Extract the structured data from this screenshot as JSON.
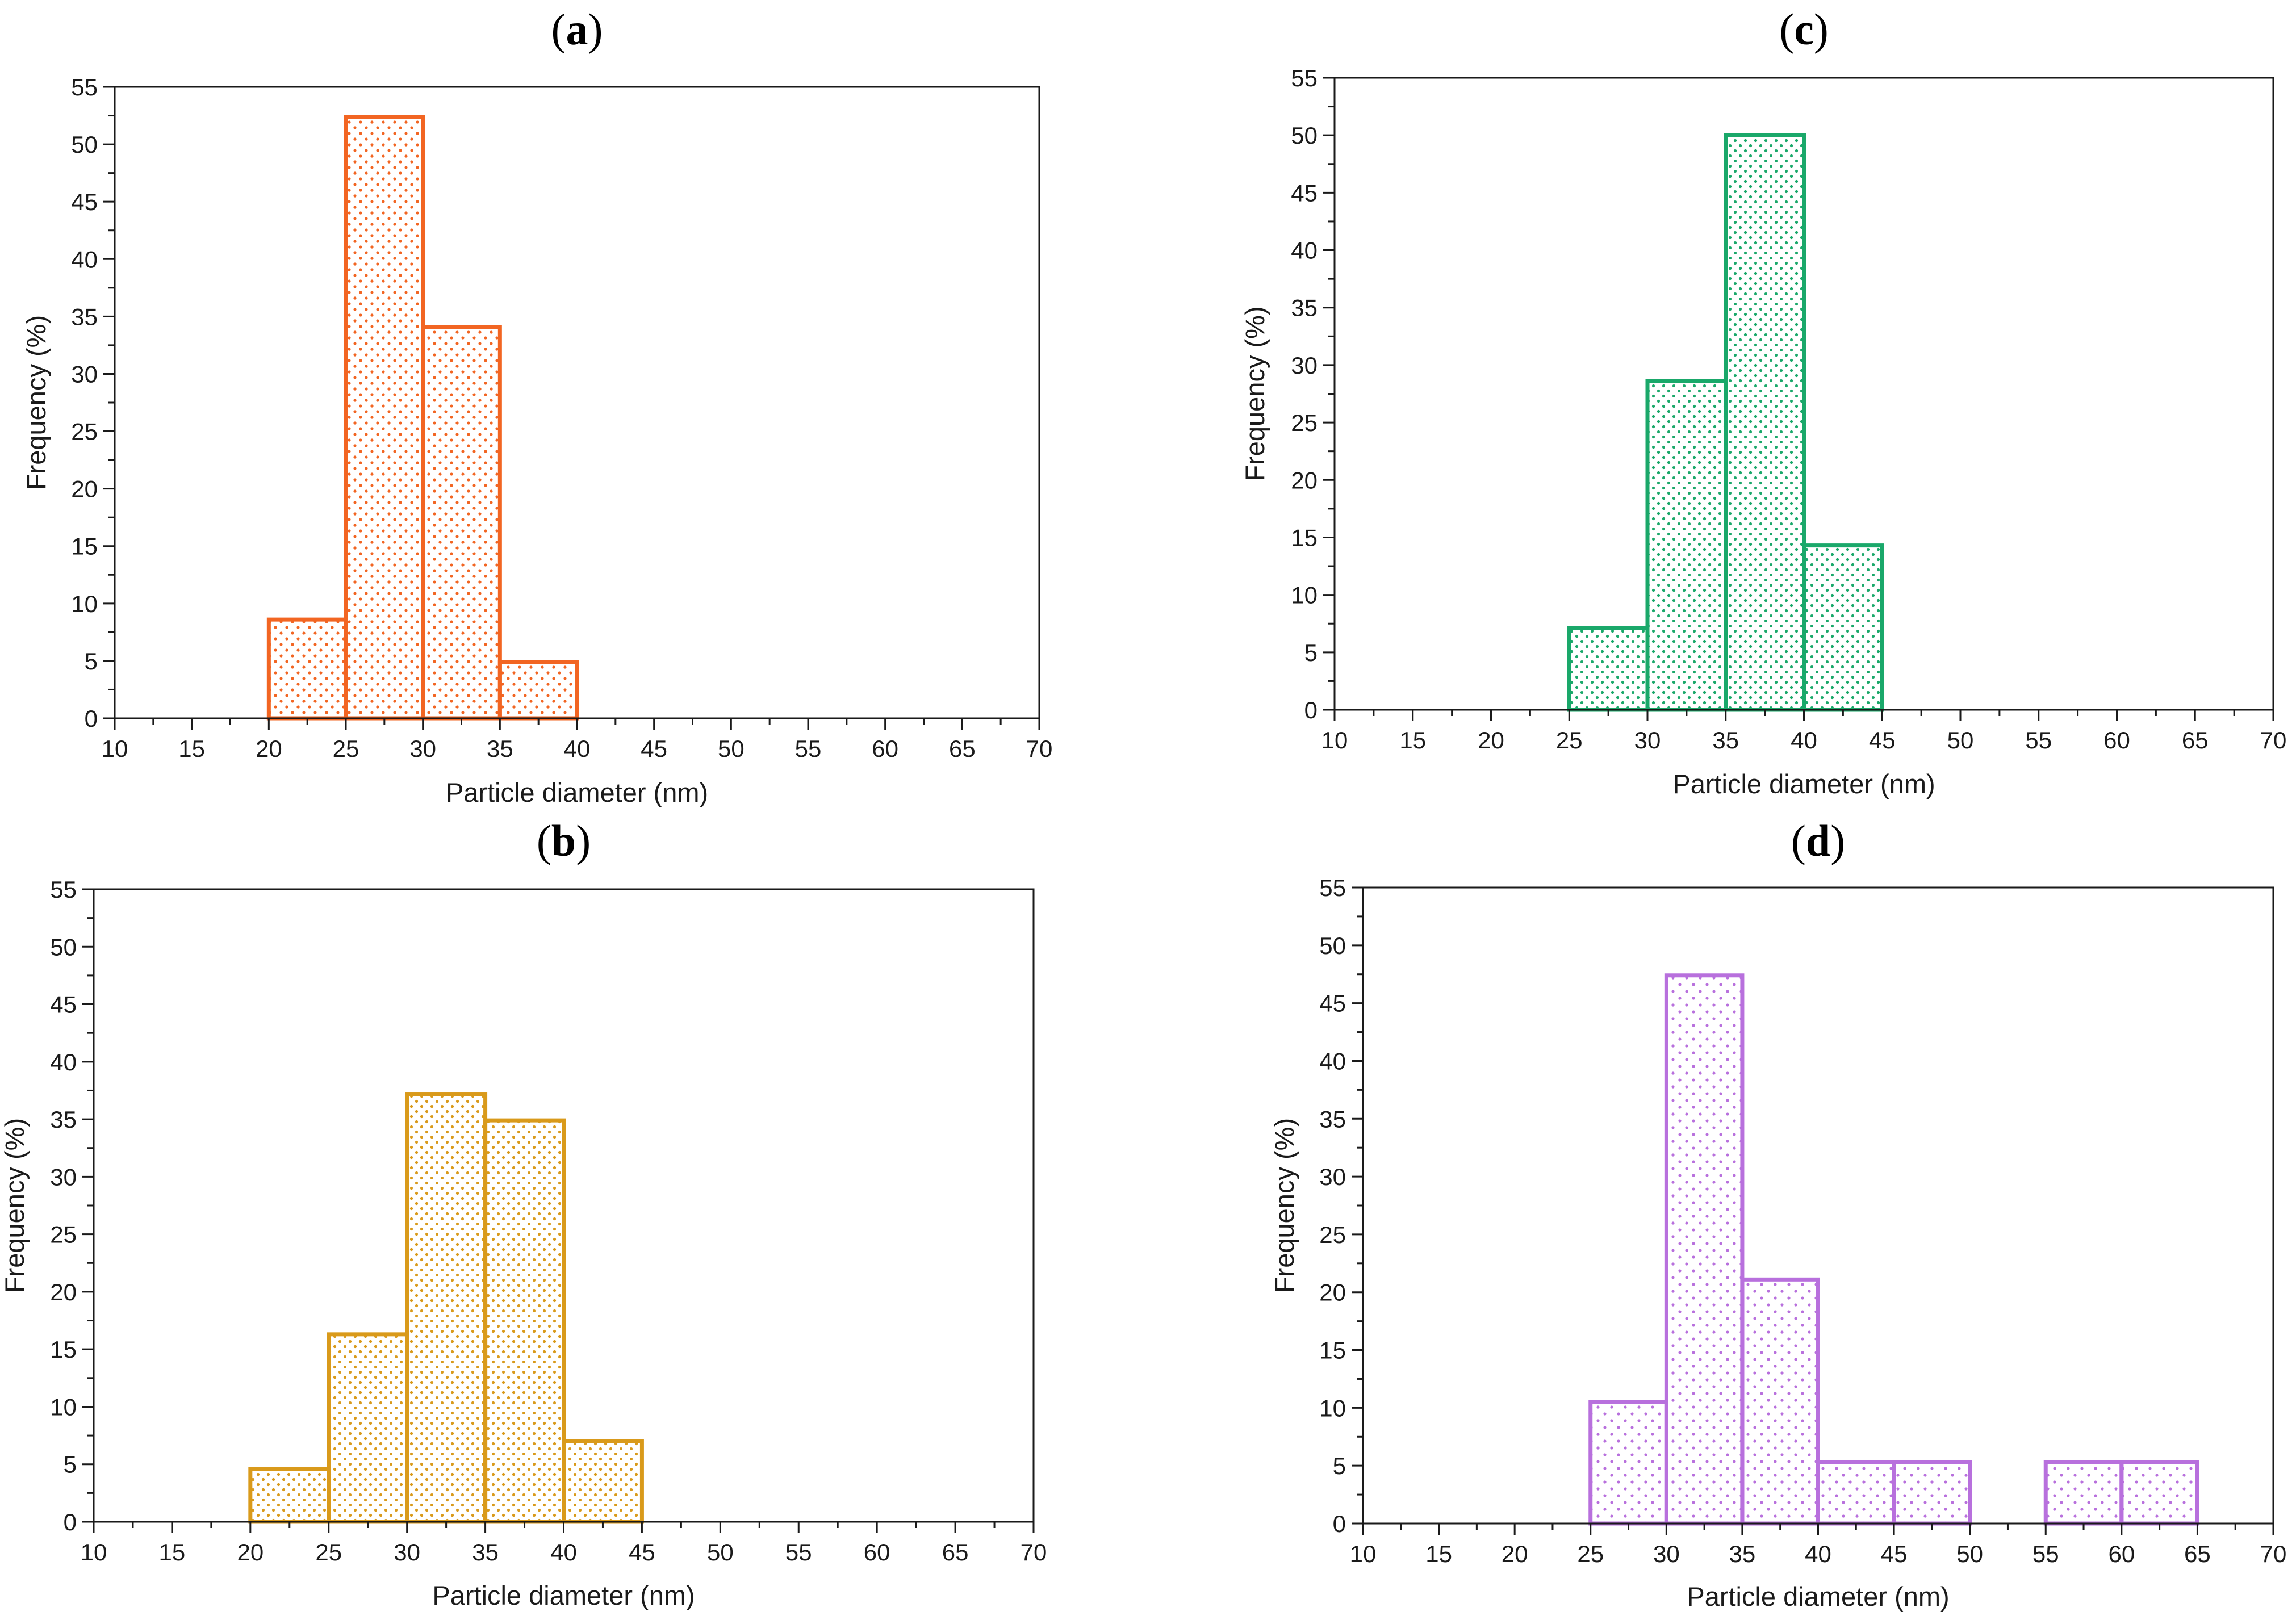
{
  "figure_labels": {
    "a": {
      "open": "(",
      "letter": "a",
      "close": ")"
    },
    "b": {
      "open": "(",
      "letter": "b",
      "close": ")"
    },
    "c": {
      "open": "(",
      "letter": "c",
      "close": ")"
    },
    "d": {
      "open": "(",
      "letter": "d",
      "close": ")"
    }
  },
  "chart_data": [
    {
      "id": "a",
      "type": "bar",
      "title": "(a)",
      "xlabel": "Particle diameter (nm)",
      "ylabel": "Frequency (%)",
      "xlim": [
        10,
        70
      ],
      "ylim": [
        0,
        55
      ],
      "xticks": [
        10,
        15,
        20,
        25,
        30,
        35,
        40,
        45,
        50,
        55,
        60,
        65,
        70
      ],
      "yticks": [
        0,
        5,
        10,
        15,
        20,
        25,
        30,
        35,
        40,
        45,
        50,
        55
      ],
      "bin_width": 5,
      "bins": [
        {
          "start": 20,
          "end": 25,
          "value": 8.6
        },
        {
          "start": 25,
          "end": 30,
          "value": 52.4
        },
        {
          "start": 30,
          "end": 35,
          "value": 34.1
        },
        {
          "start": 35,
          "end": 40,
          "value": 4.9
        }
      ],
      "color": "#f26522"
    },
    {
      "id": "b",
      "type": "bar",
      "title": "(b)",
      "xlabel": "Particle diameter (nm)",
      "ylabel": "Frequency (%)",
      "xlim": [
        10,
        70
      ],
      "ylim": [
        0,
        55
      ],
      "xticks": [
        10,
        15,
        20,
        25,
        30,
        35,
        40,
        45,
        50,
        55,
        60,
        65,
        70
      ],
      "yticks": [
        0,
        5,
        10,
        15,
        20,
        25,
        30,
        35,
        40,
        45,
        50,
        55
      ],
      "bin_width": 5,
      "bins": [
        {
          "start": 20,
          "end": 25,
          "value": 4.6
        },
        {
          "start": 25,
          "end": 30,
          "value": 16.3
        },
        {
          "start": 30,
          "end": 35,
          "value": 37.2
        },
        {
          "start": 35,
          "end": 40,
          "value": 34.9
        },
        {
          "start": 40,
          "end": 45,
          "value": 7.0
        }
      ],
      "color": "#d99a1b"
    },
    {
      "id": "c",
      "type": "bar",
      "title": "(c)",
      "xlabel": "Particle diameter (nm)",
      "ylabel": "Frequency (%)",
      "xlim": [
        10,
        70
      ],
      "ylim": [
        0,
        55
      ],
      "xticks": [
        10,
        15,
        20,
        25,
        30,
        35,
        40,
        45,
        50,
        55,
        60,
        65,
        70
      ],
      "yticks": [
        0,
        5,
        10,
        15,
        20,
        25,
        30,
        35,
        40,
        45,
        50,
        55
      ],
      "bin_width": 5,
      "bins": [
        {
          "start": 25,
          "end": 30,
          "value": 7.1
        },
        {
          "start": 30,
          "end": 35,
          "value": 28.6
        },
        {
          "start": 35,
          "end": 40,
          "value": 50.0
        },
        {
          "start": 40,
          "end": 45,
          "value": 14.3
        }
      ],
      "color": "#1aa86a"
    },
    {
      "id": "d",
      "type": "bar",
      "title": "(d)",
      "xlabel": "Particle diameter (nm)",
      "ylabel": "Frequency (%)",
      "xlim": [
        10,
        70
      ],
      "ylim": [
        0,
        55
      ],
      "xticks": [
        10,
        15,
        20,
        25,
        30,
        35,
        40,
        45,
        50,
        55,
        60,
        65,
        70
      ],
      "yticks": [
        0,
        5,
        10,
        15,
        20,
        25,
        30,
        35,
        40,
        45,
        50,
        55
      ],
      "bin_width": 5,
      "bins": [
        {
          "start": 25,
          "end": 30,
          "value": 10.5
        },
        {
          "start": 30,
          "end": 35,
          "value": 47.4
        },
        {
          "start": 35,
          "end": 40,
          "value": 21.1
        },
        {
          "start": 40,
          "end": 45,
          "value": 5.3
        },
        {
          "start": 45,
          "end": 50,
          "value": 5.3
        },
        {
          "start": 55,
          "end": 60,
          "value": 5.3
        },
        {
          "start": 60,
          "end": 65,
          "value": 5.3
        }
      ],
      "color": "#b870dd"
    }
  ]
}
